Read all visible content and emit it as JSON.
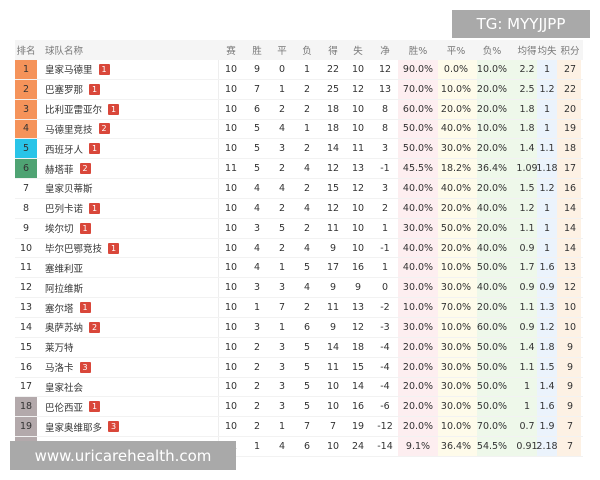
{
  "watermark_top": "TG: MYYJJPP",
  "watermark_bottom": "www.uricarehealth.com",
  "headers": [
    "排名",
    "球队名称",
    "赛",
    "胜",
    "平",
    "负",
    "得",
    "失",
    "净",
    "胜%",
    "平%",
    "负%",
    "均得",
    "均失",
    "积分"
  ],
  "zone_colors": {
    "ucl": "#f5935a",
    "uel": "#29c4e8",
    "uecl": "#4fa373",
    "rel": "#b3a9ab"
  },
  "rows": [
    [
      "1",
      "皇家马德里",
      "1",
      "10",
      "9",
      "0",
      "1",
      "22",
      "10",
      "12",
      "90.0%",
      "0.0%",
      "10.0%",
      "2.2",
      "1",
      "27",
      "ucl"
    ],
    [
      "2",
      "巴塞罗那",
      "1",
      "10",
      "7",
      "1",
      "2",
      "25",
      "12",
      "13",
      "70.0%",
      "10.0%",
      "20.0%",
      "2.5",
      "1.2",
      "22",
      "ucl"
    ],
    [
      "3",
      "比利亚雷亚尔",
      "1",
      "10",
      "6",
      "2",
      "2",
      "18",
      "10",
      "8",
      "60.0%",
      "20.0%",
      "20.0%",
      "1.8",
      "1",
      "20",
      "ucl"
    ],
    [
      "4",
      "马德里竞技",
      "2",
      "10",
      "5",
      "4",
      "1",
      "18",
      "10",
      "8",
      "50.0%",
      "40.0%",
      "10.0%",
      "1.8",
      "1",
      "19",
      "ucl"
    ],
    [
      "5",
      "西班牙人",
      "1",
      "10",
      "5",
      "3",
      "2",
      "14",
      "11",
      "3",
      "50.0%",
      "30.0%",
      "20.0%",
      "1.4",
      "1.1",
      "18",
      "uel"
    ],
    [
      "6",
      "赫塔菲",
      "2",
      "11",
      "5",
      "2",
      "4",
      "12",
      "13",
      "-1",
      "45.5%",
      "18.2%",
      "36.4%",
      "1.09",
      "1.18",
      "17",
      "uecl"
    ],
    [
      "7",
      "皇家贝蒂斯",
      "",
      "10",
      "4",
      "4",
      "2",
      "15",
      "12",
      "3",
      "40.0%",
      "40.0%",
      "20.0%",
      "1.5",
      "1.2",
      "16",
      ""
    ],
    [
      "8",
      "巴列卡诺",
      "1",
      "10",
      "4",
      "2",
      "4",
      "12",
      "10",
      "2",
      "40.0%",
      "20.0%",
      "40.0%",
      "1.2",
      "1",
      "14",
      ""
    ],
    [
      "9",
      "埃尔切",
      "1",
      "10",
      "3",
      "5",
      "2",
      "11",
      "10",
      "1",
      "30.0%",
      "50.0%",
      "20.0%",
      "1.1",
      "1",
      "14",
      ""
    ],
    [
      "10",
      "毕尔巴鄂竞技",
      "1",
      "10",
      "4",
      "2",
      "4",
      "9",
      "10",
      "-1",
      "40.0%",
      "20.0%",
      "40.0%",
      "0.9",
      "1",
      "14",
      ""
    ],
    [
      "11",
      "塞维利亚",
      "",
      "10",
      "4",
      "1",
      "5",
      "17",
      "16",
      "1",
      "40.0%",
      "10.0%",
      "50.0%",
      "1.7",
      "1.6",
      "13",
      ""
    ],
    [
      "12",
      "阿拉维斯",
      "",
      "10",
      "3",
      "3",
      "4",
      "9",
      "9",
      "0",
      "30.0%",
      "30.0%",
      "40.0%",
      "0.9",
      "0.9",
      "12",
      ""
    ],
    [
      "13",
      "塞尔塔",
      "1",
      "10",
      "1",
      "7",
      "2",
      "11",
      "13",
      "-2",
      "10.0%",
      "70.0%",
      "20.0%",
      "1.1",
      "1.3",
      "10",
      ""
    ],
    [
      "14",
      "奥萨苏纳",
      "2",
      "10",
      "3",
      "1",
      "6",
      "9",
      "12",
      "-3",
      "30.0%",
      "10.0%",
      "60.0%",
      "0.9",
      "1.2",
      "10",
      ""
    ],
    [
      "15",
      "莱万特",
      "",
      "10",
      "2",
      "3",
      "5",
      "14",
      "18",
      "-4",
      "20.0%",
      "30.0%",
      "50.0%",
      "1.4",
      "1.8",
      "9",
      ""
    ],
    [
      "16",
      "马洛卡",
      "3",
      "10",
      "2",
      "3",
      "5",
      "11",
      "15",
      "-4",
      "20.0%",
      "30.0%",
      "50.0%",
      "1.1",
      "1.5",
      "9",
      ""
    ],
    [
      "17",
      "皇家社会",
      "",
      "10",
      "2",
      "3",
      "5",
      "10",
      "14",
      "-4",
      "20.0%",
      "30.0%",
      "50.0%",
      "1",
      "1.4",
      "9",
      ""
    ],
    [
      "18",
      "巴伦西亚",
      "1",
      "10",
      "2",
      "3",
      "5",
      "10",
      "16",
      "-6",
      "20.0%",
      "30.0%",
      "50.0%",
      "1",
      "1.6",
      "9",
      "rel"
    ],
    [
      "19",
      "皇家奥维耶多",
      "3",
      "10",
      "2",
      "1",
      "7",
      "7",
      "19",
      "-12",
      "20.0%",
      "10.0%",
      "70.0%",
      "0.7",
      "1.9",
      "7",
      "rel"
    ],
    [
      "20",
      "赫罗纳",
      "4",
      "11",
      "1",
      "4",
      "6",
      "10",
      "24",
      "-14",
      "9.1%",
      "36.4%",
      "54.5%",
      "0.91",
      "2.18",
      "7",
      "rel"
    ]
  ]
}
